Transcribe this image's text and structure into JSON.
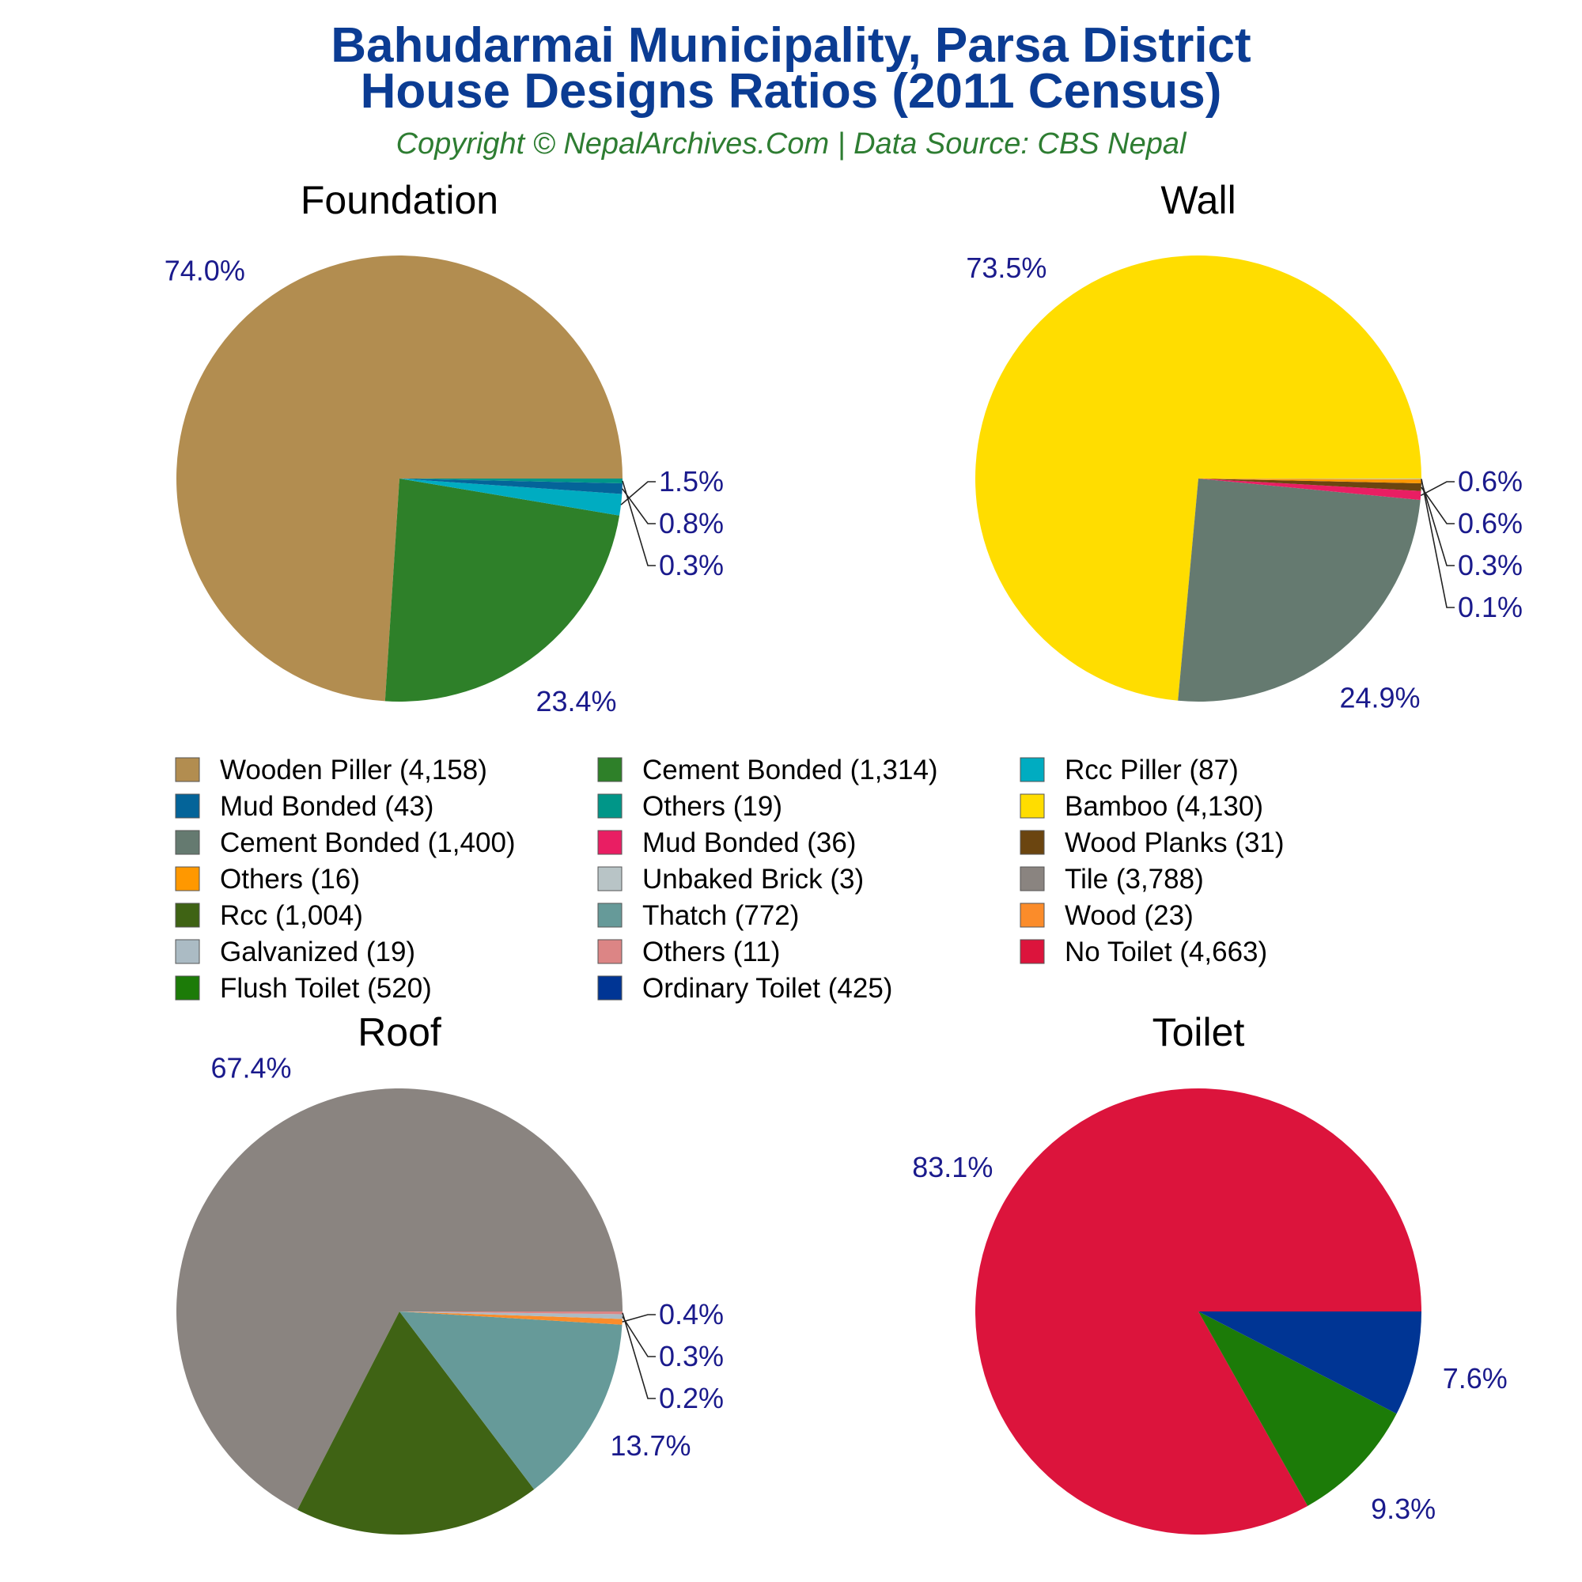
{
  "title_line1": "Bahudarmai Municipality, Parsa District",
  "title_line2": "House Designs Ratios (2011 Census)",
  "subtitle": "Copyright © NepalArchives.Com | Data Source: CBS Nepal",
  "chart_data": [
    {
      "type": "pie",
      "title": "Foundation",
      "slices": [
        {
          "label": "Wooden Piller",
          "value": 4158,
          "pct": "74.0%",
          "color": "#b28d50"
        },
        {
          "label": "Cement Bonded",
          "value": 1314,
          "pct": "23.4%",
          "color": "#2e8029"
        },
        {
          "label": "Rcc Piller",
          "value": 87,
          "pct": "1.5%",
          "color": "#00acc1"
        },
        {
          "label": "Mud Bonded",
          "value": 43,
          "pct": "0.8%",
          "color": "#046499"
        },
        {
          "label": "Others",
          "value": 19,
          "pct": "0.3%",
          "color": "#009688"
        }
      ]
    },
    {
      "type": "pie",
      "title": "Wall",
      "slices": [
        {
          "label": "Bamboo",
          "value": 4130,
          "pct": "73.5%",
          "color": "#ffdd00"
        },
        {
          "label": "Cement Bonded",
          "value": 1400,
          "pct": "24.9%",
          "color": "#657a70"
        },
        {
          "label": "Mud Bonded",
          "value": 36,
          "pct": "0.6%",
          "color": "#e91e63"
        },
        {
          "label": "Wood Planks",
          "value": 31,
          "pct": "0.6%",
          "color": "#6b4510"
        },
        {
          "label": "Others",
          "value": 16,
          "pct": "0.3%",
          "color": "#ff9800"
        },
        {
          "label": "Unbaked Brick",
          "value": 3,
          "pct": "0.1%",
          "color": "#b8c4c6"
        }
      ]
    },
    {
      "type": "pie",
      "title": "Roof",
      "slices": [
        {
          "label": "Tile",
          "value": 3788,
          "pct": "67.4%",
          "color": "#8a8480"
        },
        {
          "label": "Rcc",
          "value": 1004,
          "pct": "17.9%",
          "color": "#3f6314"
        },
        {
          "label": "Thatch",
          "value": 772,
          "pct": "13.7%",
          "color": "#669a99"
        },
        {
          "label": "Wood",
          "value": 23,
          "pct": "0.4%",
          "color": "#fb8c2a"
        },
        {
          "label": "Galvanized",
          "value": 19,
          "pct": "0.3%",
          "color": "#abbbc4"
        },
        {
          "label": "Others",
          "value": 11,
          "pct": "0.2%",
          "color": "#dc8585"
        }
      ]
    },
    {
      "type": "pie",
      "title": "Toilet",
      "slices": [
        {
          "label": "No Toilet",
          "value": 4663,
          "pct": "83.1%",
          "color": "#dc143c"
        },
        {
          "label": "Flush Toilet",
          "value": 520,
          "pct": "9.3%",
          "color": "#1c7b08"
        },
        {
          "label": "Ordinary Toilet",
          "value": 425,
          "pct": "7.6%",
          "color": "#003594"
        }
      ]
    }
  ],
  "legend": [
    {
      "text": "Wooden Piller (4,158)",
      "color": "#b28d50"
    },
    {
      "text": "Cement Bonded (1,314)",
      "color": "#2e8029"
    },
    {
      "text": "Rcc Piller (87)",
      "color": "#00acc1"
    },
    {
      "text": "Mud Bonded (43)",
      "color": "#046499"
    },
    {
      "text": "Others (19)",
      "color": "#009688"
    },
    {
      "text": "Bamboo (4,130)",
      "color": "#ffdd00"
    },
    {
      "text": "Cement Bonded (1,400)",
      "color": "#657a70"
    },
    {
      "text": "Mud Bonded (36)",
      "color": "#e91e63"
    },
    {
      "text": "Wood Planks (31)",
      "color": "#6b4510"
    },
    {
      "text": "Others (16)",
      "color": "#ff9800"
    },
    {
      "text": "Unbaked Brick (3)",
      "color": "#b8c4c6"
    },
    {
      "text": "Tile (3,788)",
      "color": "#8a8480"
    },
    {
      "text": "Rcc (1,004)",
      "color": "#3f6314"
    },
    {
      "text": "Thatch (772)",
      "color": "#669a99"
    },
    {
      "text": "Wood (23)",
      "color": "#fb8c2a"
    },
    {
      "text": "Galvanized (19)",
      "color": "#abbbc4"
    },
    {
      "text": "Others (11)",
      "color": "#dc8585"
    },
    {
      "text": "No Toilet (4,663)",
      "color": "#dc143c"
    },
    {
      "text": "Flush Toilet (520)",
      "color": "#1c7b08"
    },
    {
      "text": "Ordinary Toilet (425)",
      "color": "#003594"
    }
  ]
}
